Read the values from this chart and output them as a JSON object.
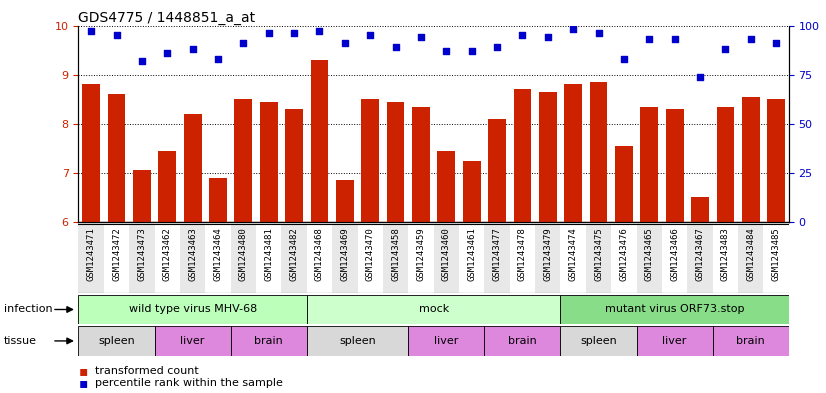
{
  "title": "GDS4775 / 1448851_a_at",
  "samples": [
    "GSM1243471",
    "GSM1243472",
    "GSM1243473",
    "GSM1243462",
    "GSM1243463",
    "GSM1243464",
    "GSM1243480",
    "GSM1243481",
    "GSM1243482",
    "GSM1243468",
    "GSM1243469",
    "GSM1243470",
    "GSM1243458",
    "GSM1243459",
    "GSM1243460",
    "GSM1243461",
    "GSM1243477",
    "GSM1243478",
    "GSM1243479",
    "GSM1243474",
    "GSM1243475",
    "GSM1243476",
    "GSM1243465",
    "GSM1243466",
    "GSM1243467",
    "GSM1243483",
    "GSM1243484",
    "GSM1243485"
  ],
  "bar_values": [
    8.8,
    8.6,
    7.05,
    7.45,
    8.2,
    6.9,
    8.5,
    8.45,
    8.3,
    9.3,
    6.85,
    8.5,
    8.45,
    8.35,
    7.45,
    7.25,
    8.1,
    8.7,
    8.65,
    8.8,
    8.85,
    7.55,
    8.35,
    8.3,
    6.5,
    8.35,
    8.55,
    8.5
  ],
  "percentile_values": [
    97,
    95,
    82,
    86,
    88,
    83,
    91,
    96,
    96,
    97,
    91,
    95,
    89,
    94,
    87,
    87,
    89,
    95,
    94,
    98,
    96,
    83,
    93,
    93,
    74,
    88,
    93,
    91
  ],
  "bar_color": "#cc2200",
  "dot_color": "#0000cc",
  "ylim_left": [
    6,
    10
  ],
  "ylim_right": [
    0,
    100
  ],
  "yticks_left": [
    6,
    7,
    8,
    9,
    10
  ],
  "yticks_right": [
    0,
    25,
    50,
    75,
    100
  ],
  "infection_groups": [
    {
      "label": "wild type virus MHV-68",
      "start": 0,
      "end": 9,
      "color": "#bbffbb"
    },
    {
      "label": "mock",
      "start": 9,
      "end": 19,
      "color": "#ccffcc"
    },
    {
      "label": "mutant virus ORF73.stop",
      "start": 19,
      "end": 28,
      "color": "#88dd88"
    }
  ],
  "tissue_groups": [
    {
      "label": "spleen",
      "start": 0,
      "end": 3,
      "color": "#dddddd"
    },
    {
      "label": "liver",
      "start": 3,
      "end": 6,
      "color": "#dd88dd"
    },
    {
      "label": "brain",
      "start": 6,
      "end": 9,
      "color": "#dd88dd"
    },
    {
      "label": "spleen",
      "start": 9,
      "end": 13,
      "color": "#dddddd"
    },
    {
      "label": "liver",
      "start": 13,
      "end": 16,
      "color": "#dd88dd"
    },
    {
      "label": "brain",
      "start": 16,
      "end": 19,
      "color": "#dd88dd"
    },
    {
      "label": "spleen",
      "start": 19,
      "end": 22,
      "color": "#dddddd"
    },
    {
      "label": "liver",
      "start": 22,
      "end": 25,
      "color": "#dd88dd"
    },
    {
      "label": "brain",
      "start": 25,
      "end": 28,
      "color": "#dd88dd"
    }
  ],
  "infection_label": "infection",
  "tissue_label": "tissue",
  "legend_bar_label": "transformed count",
  "legend_dot_label": "percentile rank within the sample",
  "tick_bg_even": "#e8e8e8",
  "tick_bg_odd": "#ffffff"
}
